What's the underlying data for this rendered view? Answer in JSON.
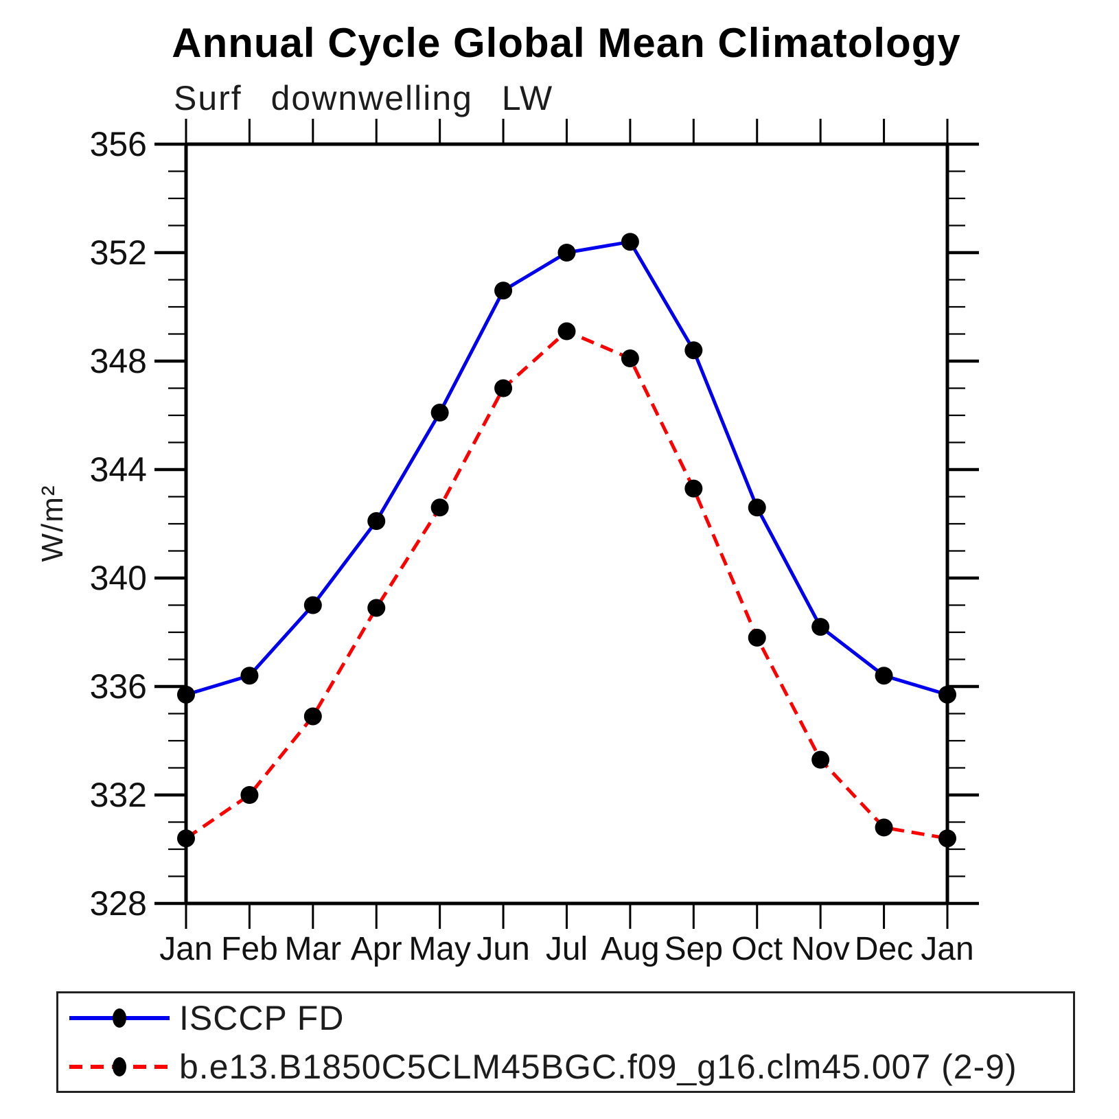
{
  "title": "Annual Cycle Global Mean Climatology",
  "subtitle": "Surf downwelling LW",
  "y_axis_label": "W/m²",
  "colors": {
    "obs_line": "#0000EE",
    "model_line": "#FF0000",
    "marker": "#000000",
    "axis": "#000000"
  },
  "chart_data": {
    "type": "line",
    "title": "Annual Cycle Global Mean Climatology",
    "subtitle": "Surf downwelling LW",
    "xlabel": "",
    "ylabel": "W/m²",
    "categories": [
      "Jan",
      "Feb",
      "Mar",
      "Apr",
      "May",
      "Jun",
      "Jul",
      "Aug",
      "Sep",
      "Oct",
      "Nov",
      "Dec",
      "Jan"
    ],
    "series": [
      {
        "name": "ISCCP FD",
        "color": "#0000EE",
        "line": "solid",
        "marker": "circle",
        "values": [
          335.7,
          336.4,
          339.0,
          342.1,
          346.1,
          350.6,
          352.0,
          352.4,
          348.4,
          342.6,
          338.2,
          336.4,
          335.7
        ]
      },
      {
        "name": "b.e13.B1850C5CLM45BGC.f09_g16.clm45.007 (2-9)",
        "color": "#FF0000",
        "line": "dashed",
        "marker": "circle",
        "values": [
          330.4,
          332.0,
          334.9,
          338.9,
          342.6,
          347.0,
          349.1,
          348.1,
          343.3,
          337.8,
          333.3,
          330.8,
          330.4
        ]
      }
    ],
    "ylim": [
      328,
      356
    ],
    "ytick_major_step": 4,
    "ytick_minor_step": 1,
    "ytick_labels": [
      "328",
      "332",
      "336",
      "340",
      "344",
      "348",
      "352",
      "356"
    ],
    "grid": false,
    "legend_position": "bottom"
  }
}
